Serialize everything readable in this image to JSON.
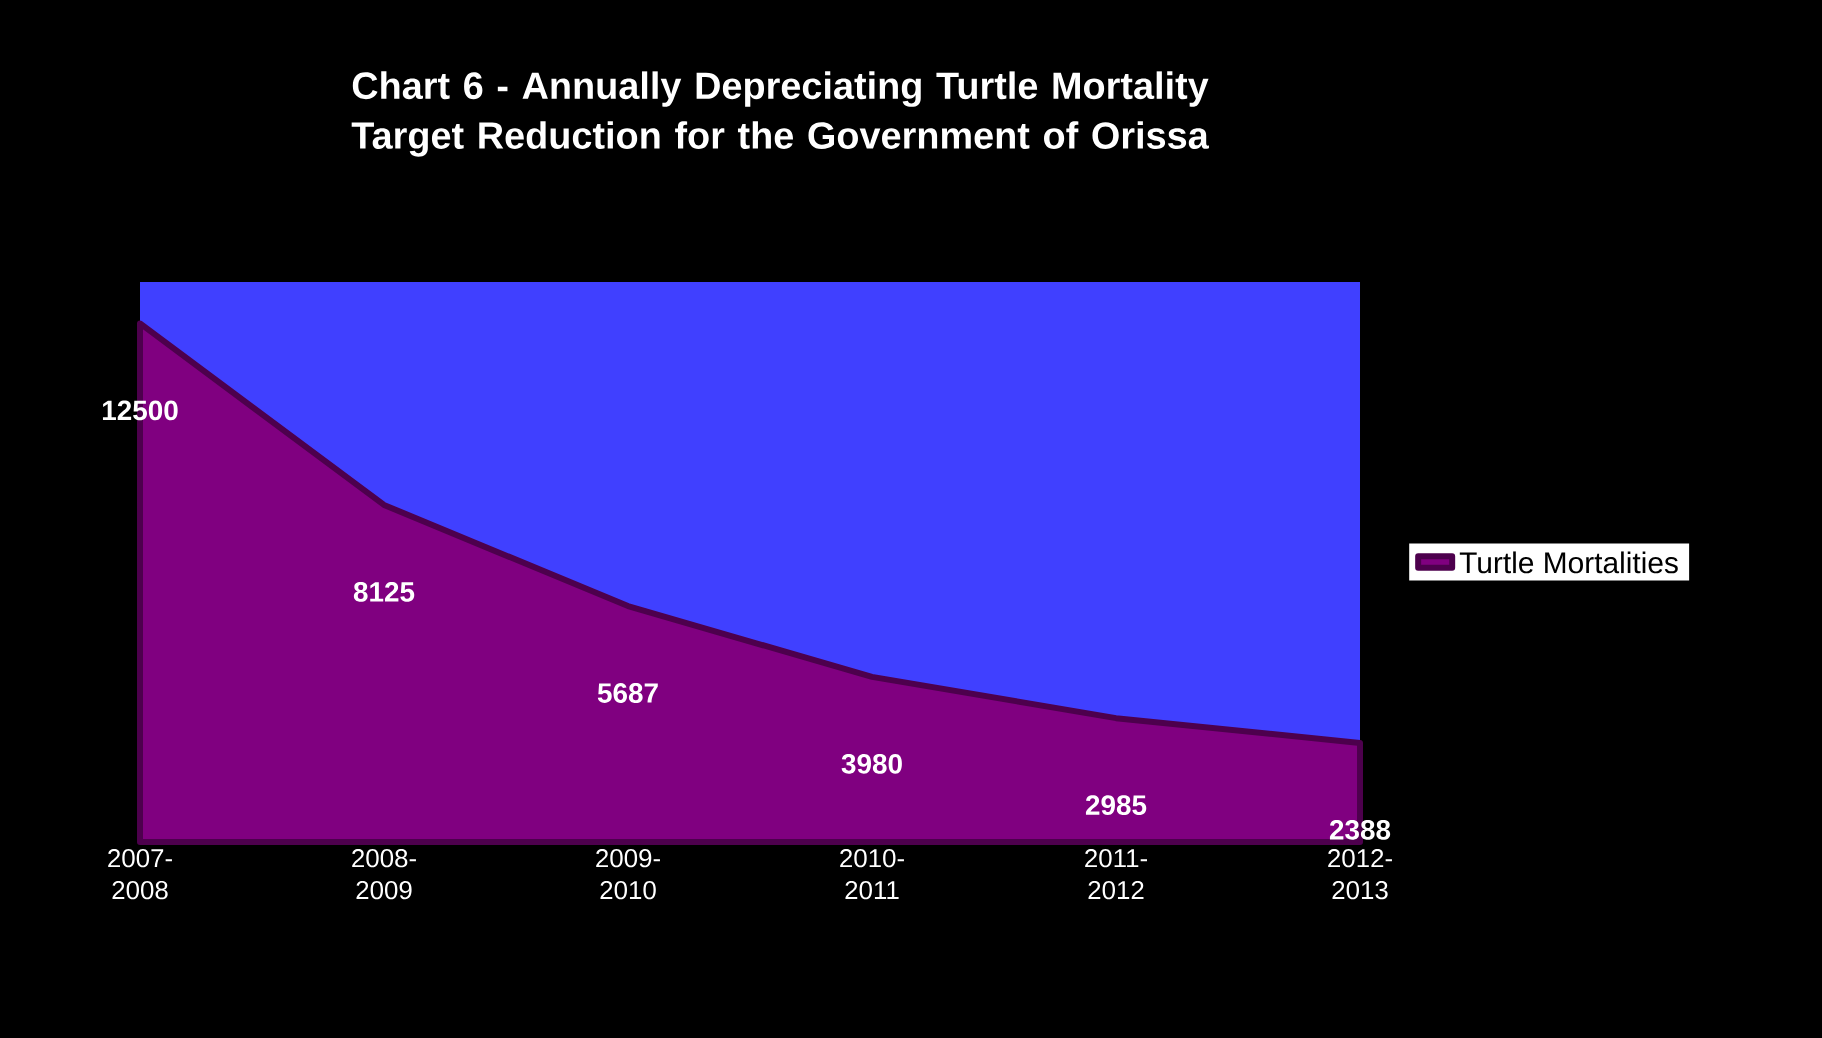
{
  "chart_data": {
    "type": "area",
    "title": "Chart 6 - Annually Depreciating Turtle Mortality Target Reduction for the Government of Orissa",
    "categories": [
      "2007-2008",
      "2008-2009",
      "2009-2010",
      "2010-2011",
      "2011-2012",
      "2012-2013"
    ],
    "series": [
      {
        "name": "Turtle Mortalities",
        "color": "#800080",
        "values": [
          12500,
          8125,
          5687,
          3980,
          2985,
          2388
        ]
      }
    ],
    "relative": false,
    "data_labels": true,
    "legend": "right"
  }
}
